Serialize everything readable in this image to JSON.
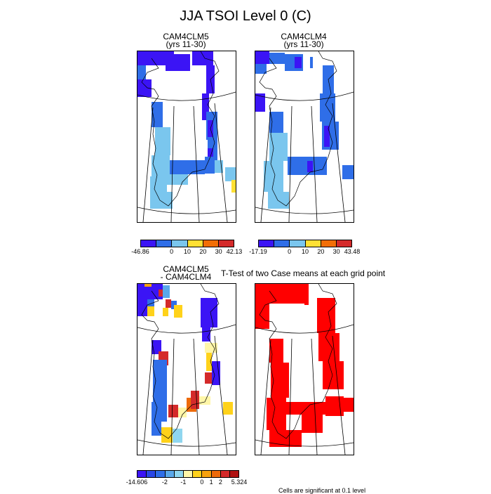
{
  "figure": {
    "title": "JJA TSOI Level 0 (C)",
    "ttest_label": "T-Test of two Case means at each grid point",
    "footnote": "Cells are significant at 0.1 level"
  },
  "panels": {
    "p1": {
      "title_line1": "CAM4CLM5",
      "title_line2": "(yrs 11-30)"
    },
    "p2": {
      "title_line1": "CAM4CLM4",
      "title_line2": "(yrs 11-30)"
    },
    "p3": {
      "title_line1": "CAM4CLM5",
      "title_line2": "- CAM4CLM4"
    },
    "p4": {
      "title_line1": "",
      "title_line2": ""
    }
  },
  "colorbars": {
    "cb1": {
      "colors": [
        "#3b14f5",
        "#2f6ee8",
        "#7ac6ee",
        "#ffe033",
        "#f26e06",
        "#d42a2a"
      ],
      "labels": [
        "-46.86",
        "0",
        "10",
        "20",
        "30",
        "42.13"
      ]
    },
    "cb2": {
      "colors": [
        "#3b14f5",
        "#2f6ee8",
        "#7ac6ee",
        "#ffe033",
        "#f26e06",
        "#d42a2a"
      ],
      "labels": [
        "-17.19",
        "0",
        "10",
        "20",
        "30",
        "43.48"
      ]
    },
    "cb3": {
      "colors": [
        "#3b14f5",
        "#2a47e6",
        "#2f6ee8",
        "#5aa8ea",
        "#8fd6ef",
        "#fff6a8",
        "#ffd21a",
        "#f7a20e",
        "#ee6a0a",
        "#d42a2a",
        "#b01010"
      ],
      "labels": [
        "-14.606",
        "-2",
        "-1",
        "0",
        "1",
        "2",
        "5.324"
      ]
    }
  },
  "colors": {
    "dark_blue": "#3b14f5",
    "mid_blue": "#2f6ee8",
    "light_blue": "#7ac6ee",
    "yellow": "#ffe033",
    "orange": "#f7a20e",
    "red": "#d42a2a",
    "significant": "#ff0000"
  }
}
